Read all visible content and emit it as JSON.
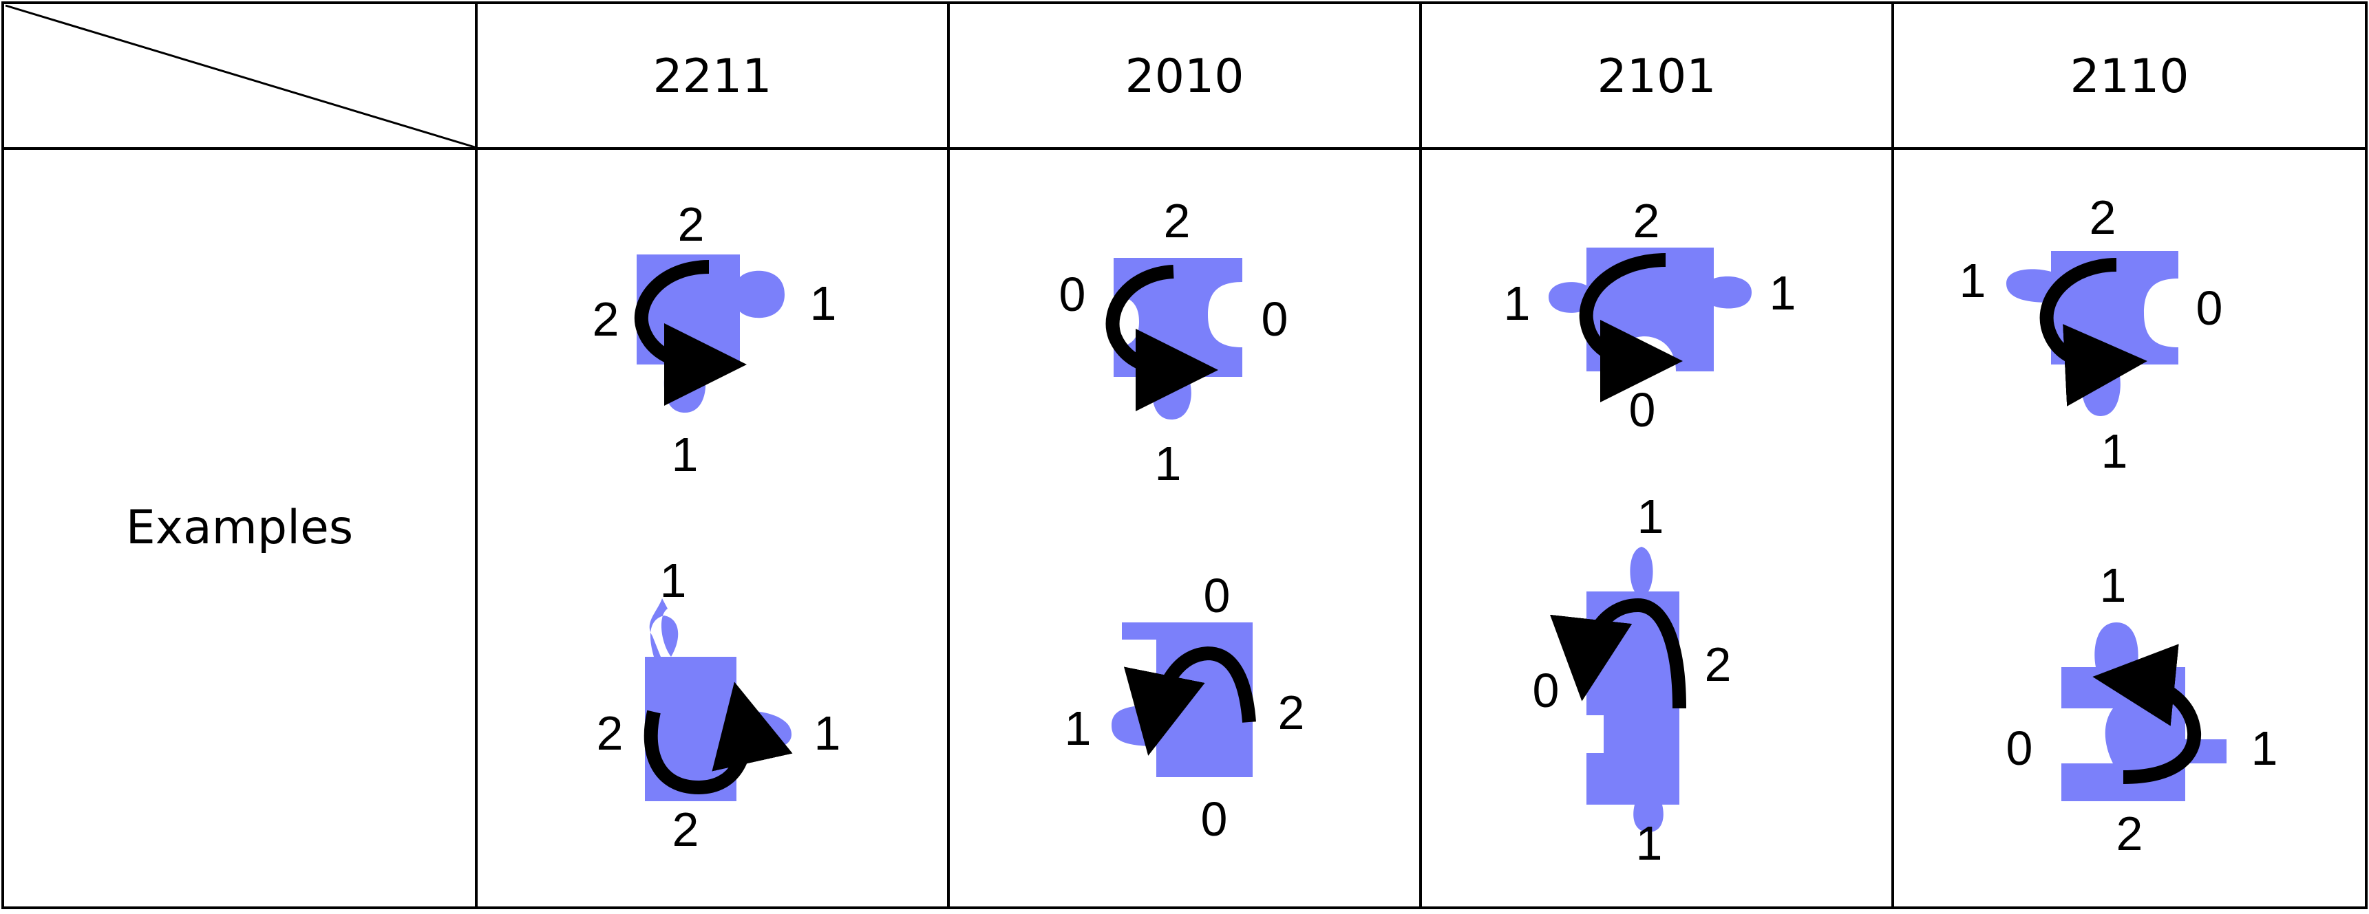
{
  "table": {
    "columns": [
      "2211",
      "2010",
      "2101",
      "2110"
    ],
    "row_label": "Examples"
  },
  "style": {
    "piece_color": "#7b80fa",
    "line_color": "#000000",
    "arrow_color": "#000000"
  },
  "cells": [
    {
      "code": "2211",
      "examples": [
        {
          "top": "2",
          "left": "2",
          "right": "1",
          "bottom": "1"
        },
        {
          "top": "1",
          "left": "2",
          "right": "1",
          "bottom": "2"
        }
      ]
    },
    {
      "code": "2010",
      "examples": [
        {
          "top": "2",
          "left": "0",
          "right": "0",
          "bottom": "1"
        },
        {
          "top": "0",
          "left": "1",
          "right": "2",
          "bottom": "0"
        }
      ]
    },
    {
      "code": "2101",
      "examples": [
        {
          "top": "2",
          "left": "1",
          "right": "1",
          "bottom": "0"
        },
        {
          "top": "1",
          "left": "0",
          "right": "2",
          "bottom": "1"
        }
      ]
    },
    {
      "code": "2110",
      "examples": [
        {
          "top": "2",
          "left": "1",
          "right": "0",
          "bottom": "1"
        },
        {
          "top": "1",
          "left": "0",
          "right": "1",
          "bottom": "2"
        }
      ]
    }
  ]
}
